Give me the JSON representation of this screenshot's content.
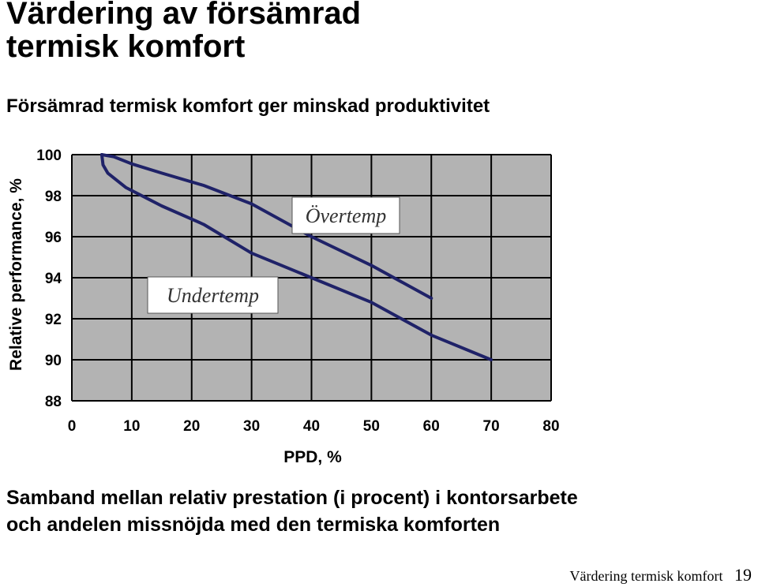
{
  "slide": {
    "title_line1": "Värdering av försämrad",
    "title_line2": "termisk komfort",
    "subtitle": "Försämrad termisk komfort ger minskad produktivitet",
    "caption_line1": "Samband mellan relativ prestation (i procent) i kontorsarbete",
    "caption_line2": "och andelen missnöjda med den termiska komforten",
    "footer_text": "Värdering termisk komfort",
    "page_number": "19"
  },
  "chart_data": {
    "type": "line",
    "title": "",
    "xlabel": "PPD, %",
    "ylabel": "Relative performance, %",
    "xlim": [
      0,
      80
    ],
    "ylim": [
      88,
      100
    ],
    "x_ticks": [
      0,
      10,
      20,
      30,
      40,
      50,
      60,
      70,
      80
    ],
    "y_ticks": [
      88,
      90,
      92,
      94,
      96,
      98,
      100
    ],
    "grid": true,
    "legend": "none",
    "colors": {
      "plot_bg": "#b3b3b3",
      "line": "#1f2268",
      "grid": "#000000",
      "label_box": "#ffffff"
    },
    "series": [
      {
        "name": "Övertemp",
        "x": [
          5,
          7,
          10,
          15,
          22,
          30,
          40,
          50,
          60
        ],
        "y": [
          100,
          99.9,
          99.55,
          99.1,
          98.5,
          97.6,
          96.0,
          94.6,
          93.0
        ]
      },
      {
        "name": "Undertemp",
        "x": [
          5,
          5.2,
          6,
          9,
          15,
          22,
          30,
          40,
          50,
          60,
          70
        ],
        "y": [
          100,
          99.5,
          99.1,
          98.4,
          97.5,
          96.6,
          95.2,
          94.0,
          92.8,
          91.2,
          90.0
        ]
      }
    ],
    "annotations": [
      {
        "text": "Övertemp",
        "series": "Övertemp"
      },
      {
        "text": "Undertemp",
        "series": "Undertemp"
      }
    ]
  }
}
